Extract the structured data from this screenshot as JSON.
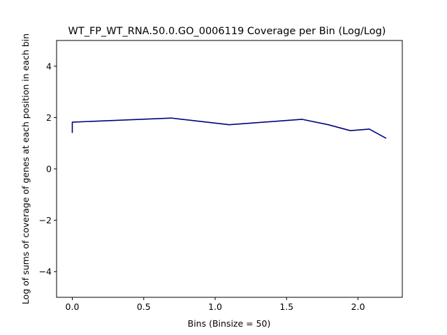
{
  "chart_data": {
    "type": "line",
    "title": "WT_FP_WT_RNA.50.0.GO_0006119 Coverage per Bin (Log/Log)",
    "xlabel": "Bins (Binsize = 50)",
    "ylabel": "Log of sums of coverage of genes at each position in each bin",
    "xlim": [
      -0.11,
      2.31
    ],
    "ylim": [
      -5,
      5
    ],
    "xticks": [
      0.0,
      0.5,
      1.0,
      1.5,
      2.0
    ],
    "xtick_labels": [
      "0.0",
      "0.5",
      "1.0",
      "1.5",
      "2.0"
    ],
    "yticks": [
      -4,
      -2,
      0,
      2,
      4
    ],
    "ytick_labels": [
      "−4",
      "−2",
      "0",
      "2",
      "4"
    ],
    "grid": false,
    "series": [
      {
        "color": "#000080",
        "x": [
          0.0,
          0.0,
          0.693,
          1.099,
          1.609,
          1.792,
          1.946,
          2.079,
          2.197
        ],
        "y": [
          1.4,
          1.82,
          1.98,
          1.72,
          1.93,
          1.72,
          1.49,
          1.55,
          1.19
        ]
      }
    ]
  }
}
